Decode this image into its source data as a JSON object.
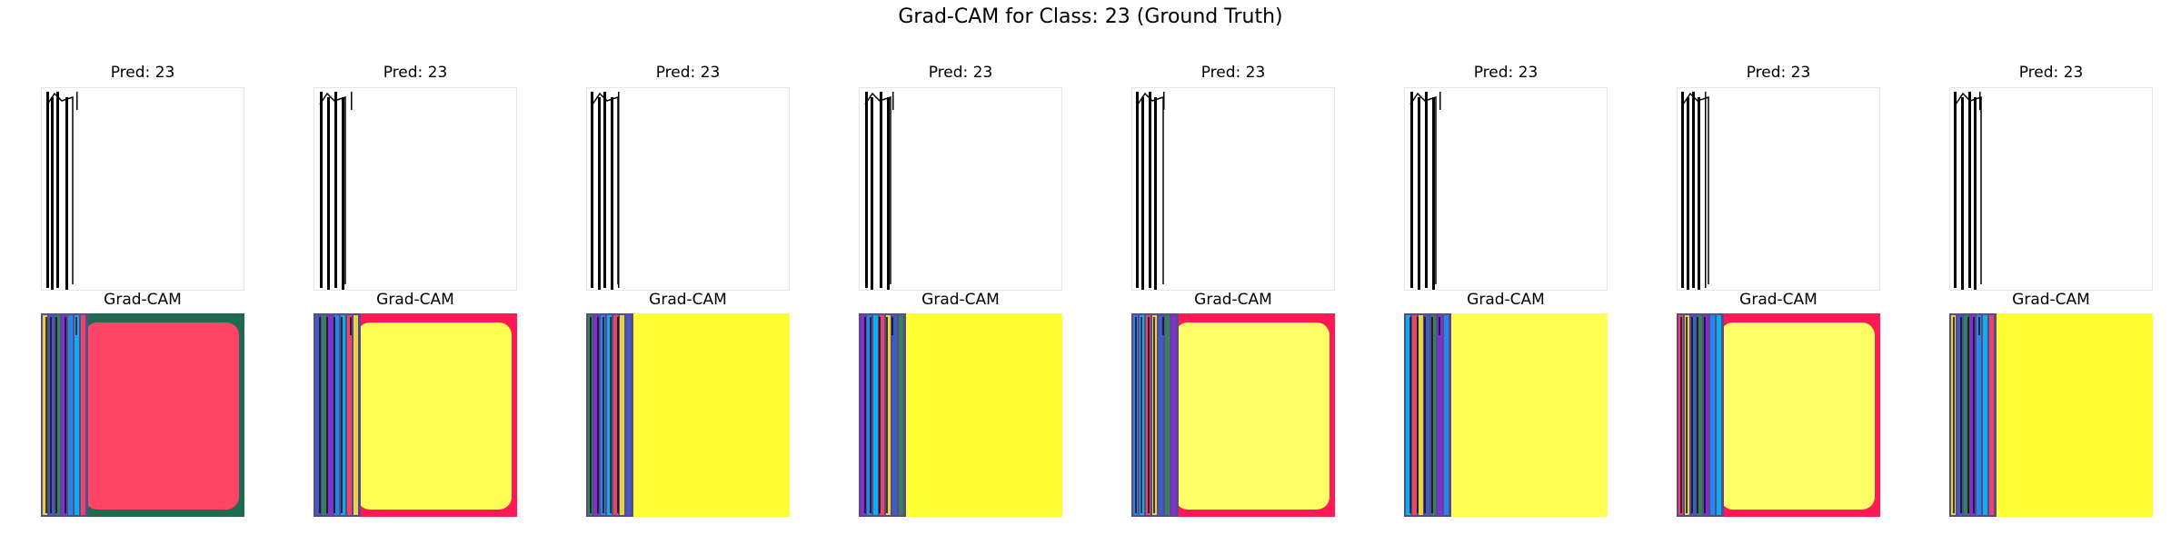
{
  "figure": {
    "title": "Grad-CAM for Class: 23 (Ground Truth)"
  },
  "panels": [
    {
      "pred_label": "Pred: 23",
      "cam_label": "Grad-CAM",
      "cam_bg": "#1f6b52",
      "cam_inner": "#ff4466",
      "cam_edge": "#ff6b80"
    },
    {
      "pred_label": "Pred: 23",
      "cam_label": "Grad-CAM",
      "cam_bg": "#ff1a55",
      "cam_inner": "#ffff55",
      "cam_edge": "#ffff66"
    },
    {
      "pred_label": "Pred: 23",
      "cam_label": "Grad-CAM",
      "cam_bg": "#ffff33",
      "cam_inner": "#ffff33",
      "cam_edge": "#ffff33"
    },
    {
      "pred_label": "Pred: 23",
      "cam_label": "Grad-CAM",
      "cam_bg": "#ffff33",
      "cam_inner": "#ffff33",
      "cam_edge": "#ffff33"
    },
    {
      "pred_label": "Pred: 23",
      "cam_label": "Grad-CAM",
      "cam_bg": "#ff1a55",
      "cam_inner": "#ffff66",
      "cam_edge": "#ffff66"
    },
    {
      "pred_label": "Pred: 23",
      "cam_label": "Grad-CAM",
      "cam_bg": "#ffff55",
      "cam_inner": "#ffff55",
      "cam_edge": "#ffff55"
    },
    {
      "pred_label": "Pred: 23",
      "cam_label": "Grad-CAM",
      "cam_bg": "#ff1a55",
      "cam_inner": "#ffff66",
      "cam_edge": "#ffff66"
    },
    {
      "pred_label": "Pred: 23",
      "cam_label": "Grad-CAM",
      "cam_bg": "#ffff33",
      "cam_inner": "#ffff33",
      "cam_edge": "#ffff33"
    }
  ]
}
